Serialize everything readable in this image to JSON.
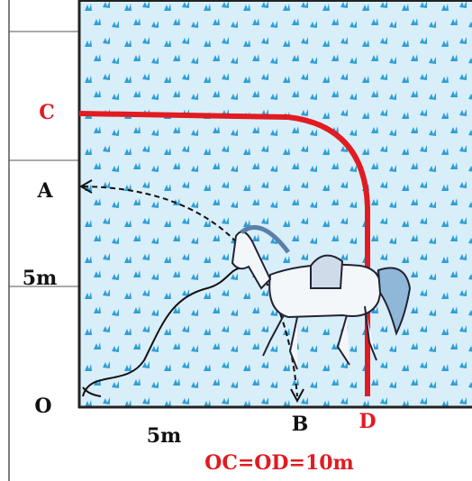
{
  "labels": {
    "c": "C",
    "a": "A",
    "side": "5m",
    "o": "O",
    "bottom": "5m",
    "b": "B",
    "d": "D",
    "caption": "OC=OD=10m"
  }
}
